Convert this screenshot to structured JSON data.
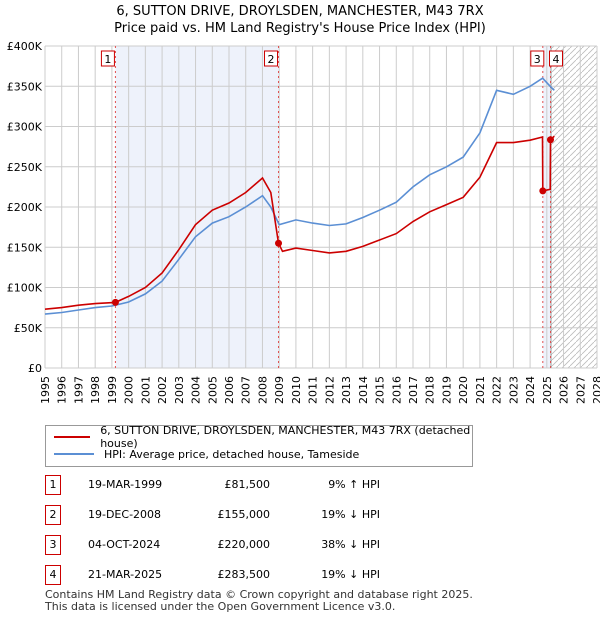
{
  "chart_data": {
    "type": "line",
    "title": "6, SUTTON DRIVE, DROYLSDEN, MANCHESTER, M43 7RX",
    "subtitle": "Price paid vs. HM Land Registry's House Price Index (HPI)",
    "xlim": [
      1995,
      2028
    ],
    "ylim": [
      0,
      400000
    ],
    "x_ticks": [
      "1995",
      "1996",
      "1997",
      "1998",
      "1999",
      "2000",
      "2001",
      "2002",
      "2003",
      "2004",
      "2005",
      "2006",
      "2007",
      "2008",
      "2009",
      "2010",
      "2011",
      "2012",
      "2013",
      "2014",
      "2015",
      "2016",
      "2017",
      "2018",
      "2019",
      "2020",
      "2021",
      "2022",
      "2023",
      "2024",
      "2025",
      "2026",
      "2027",
      "2028"
    ],
    "y_ticks": [
      {
        "v": 0,
        "label": "£0"
      },
      {
        "v": 50000,
        "label": "£50K"
      },
      {
        "v": 100000,
        "label": "£100K"
      },
      {
        "v": 150000,
        "label": "£150K"
      },
      {
        "v": 200000,
        "label": "£200K"
      },
      {
        "v": 250000,
        "label": "£250K"
      },
      {
        "v": 300000,
        "label": "£300K"
      },
      {
        "v": 350000,
        "label": "£350K"
      },
      {
        "v": 400000,
        "label": "£400K"
      }
    ],
    "grid": true,
    "forecast_from": 2025.25,
    "series": [
      {
        "name": "6, SUTTON DRIVE, DROYLSDEN, MANCHESTER, M43 7RX (detached house)",
        "color": "#cc0000",
        "x": [
          1995,
          1996,
          1997,
          1998,
          1999.21,
          2000,
          2001,
          2002,
          2003,
          2004,
          2005,
          2006,
          2007,
          2008,
          2008.5,
          2008.96,
          2009.2,
          2010,
          2011,
          2012,
          2013,
          2014,
          2015,
          2016,
          2017,
          2018,
          2019,
          2020,
          2021,
          2022,
          2023,
          2024,
          2024.74,
          2024.76,
          2025.2,
          2025.22,
          2025.45
        ],
        "y": [
          73000,
          75000,
          78000,
          80000,
          81500,
          89000,
          100000,
          118000,
          147000,
          178000,
          196000,
          205000,
          218000,
          236000,
          218000,
          155000,
          145000,
          149000,
          146000,
          143000,
          145000,
          151000,
          159000,
          167000,
          182000,
          194000,
          203000,
          212000,
          237000,
          280000,
          280000,
          283000,
          287000,
          220000,
          222000,
          283500,
          288000
        ]
      },
      {
        "name": "HPI: Average price, detached house, Tameside",
        "color": "#5b8fd4",
        "x": [
          1995,
          1996,
          1997,
          1998,
          1999,
          2000,
          2001,
          2002,
          2003,
          2004,
          2005,
          2006,
          2007,
          2008,
          2008.5,
          2009,
          2010,
          2011,
          2012,
          2013,
          2014,
          2015,
          2016,
          2017,
          2018,
          2019,
          2020,
          2021,
          2022,
          2023,
          2024,
          2024.75,
          2025.2,
          2025.45
        ],
        "y": [
          67000,
          69000,
          72000,
          75000,
          77000,
          82000,
          92000,
          108000,
          135000,
          163000,
          180000,
          188000,
          200000,
          214000,
          200000,
          178000,
          184000,
          180000,
          177000,
          179000,
          187000,
          196000,
          206000,
          225000,
          240000,
          250000,
          262000,
          292000,
          345000,
          340000,
          350000,
          360000,
          350000,
          345000
        ]
      }
    ],
    "sales": [
      {
        "id": "1",
        "x": 1999.21,
        "y": 81500,
        "date": "19-MAR-1999",
        "price": "£81,500",
        "hpi": "9% ↑ HPI"
      },
      {
        "id": "2",
        "x": 2008.96,
        "y": 155000,
        "date": "19-DEC-2008",
        "price": "£155,000",
        "hpi": "19% ↓ HPI"
      },
      {
        "id": "3",
        "x": 2024.76,
        "y": 220000,
        "date": "04-OCT-2024",
        "price": "£220,000",
        "hpi": "38% ↓ HPI"
      },
      {
        "id": "4",
        "x": 2025.22,
        "y": 283500,
        "date": "21-MAR-2025",
        "price": "£283,500",
        "hpi": "19% ↓ HPI"
      }
    ]
  },
  "footer": {
    "line1": "Contains HM Land Registry data © Crown copyright and database right 2025.",
    "line2": "This data is licensed under the Open Government Licence v3.0."
  }
}
